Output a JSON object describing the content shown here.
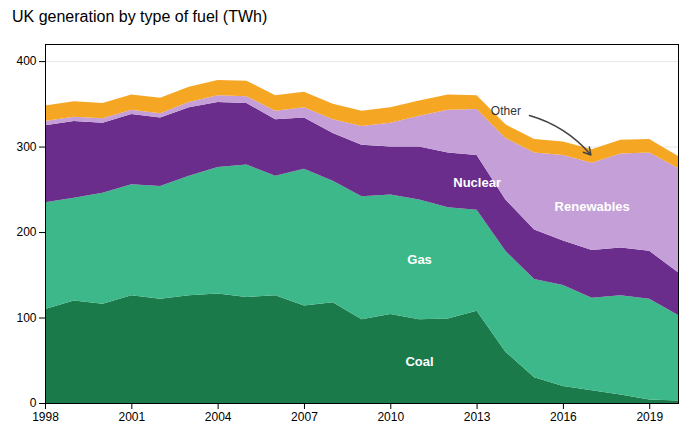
{
  "chart_data": {
    "type": "area",
    "stacked": true,
    "title": "UK generation by type of fuel (TWh)",
    "x": [
      1998,
      1999,
      2000,
      2001,
      2002,
      2003,
      2004,
      2005,
      2006,
      2007,
      2008,
      2009,
      2010,
      2011,
      2012,
      2013,
      2014,
      2015,
      2016,
      2017,
      2018,
      2019,
      2020
    ],
    "series": [
      {
        "name": "Coal",
        "color": "#1a7a4a",
        "values": [
          110,
          120,
          116,
          126,
          122,
          126,
          128,
          124,
          126,
          114,
          118,
          98,
          104,
          98,
          99,
          108,
          60,
          30,
          20,
          15,
          10,
          4,
          3
        ]
      },
      {
        "name": "Gas",
        "color": "#3cb88a",
        "values": [
          125,
          120,
          130,
          130,
          132,
          140,
          148,
          155,
          140,
          160,
          142,
          144,
          140,
          140,
          130,
          118,
          118,
          115,
          118,
          108,
          116,
          118,
          100
        ]
      },
      {
        "name": "Nuclear",
        "color": "#6b2d8b",
        "values": [
          90,
          90,
          82,
          82,
          80,
          80,
          76,
          72,
          66,
          60,
          56,
          60,
          56,
          62,
          64,
          64,
          60,
          58,
          52,
          56,
          56,
          56,
          50
        ]
      },
      {
        "name": "Renewables",
        "color": "#c49fd8",
        "values": [
          5,
          5,
          5,
          5,
          5,
          6,
          8,
          8,
          10,
          12,
          16,
          22,
          28,
          36,
          50,
          54,
          72,
          90,
          100,
          102,
          110,
          115,
          122
        ]
      },
      {
        "name": "Other",
        "color": "#f5a623",
        "values": [
          18,
          18,
          18,
          18,
          18,
          18,
          18,
          18,
          18,
          18,
          18,
          18,
          18,
          18,
          18,
          16,
          16,
          16,
          16,
          16,
          16,
          16,
          14
        ]
      }
    ],
    "xlim": [
      1998,
      2020
    ],
    "xticks": [
      1998,
      2001,
      2004,
      2007,
      2010,
      2013,
      2016,
      2019
    ],
    "ylim": [
      0,
      420
    ],
    "yticks": [
      0,
      100,
      200,
      300,
      400
    ],
    "grid": true
  }
}
